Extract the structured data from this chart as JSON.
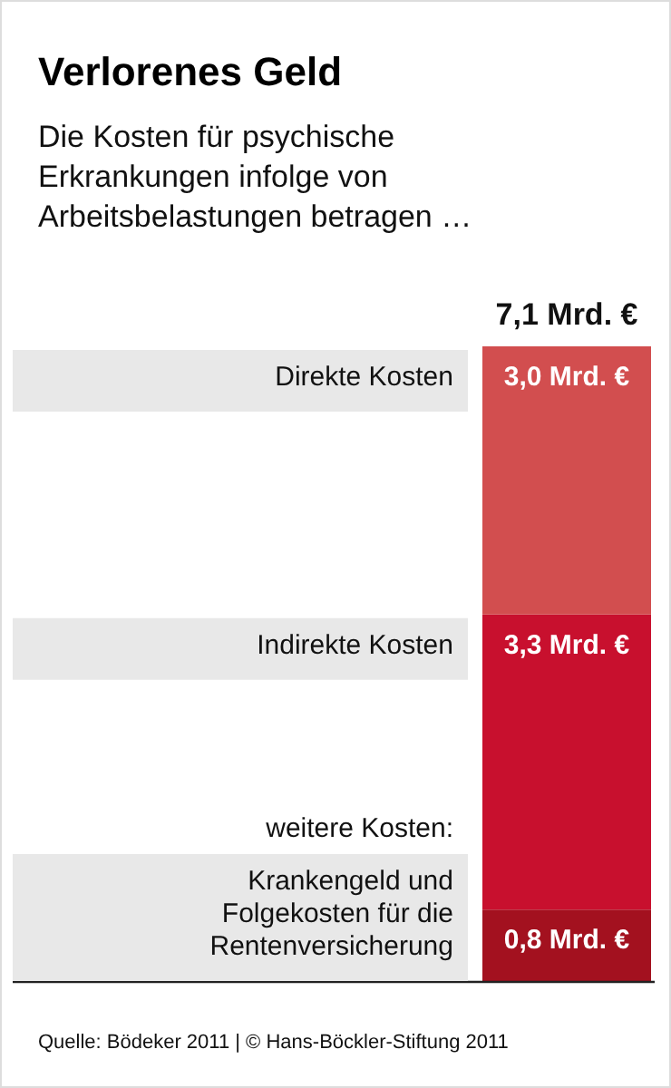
{
  "chart_data": {
    "type": "bar",
    "title": "Verlorenes Geld",
    "subtitle": "Die Kosten für psychische Erkrankungen infolge von Arbeitsbelastungen betragen …",
    "categories": [
      null
    ],
    "stacked": true,
    "series": [
      {
        "name": "Krankengeld und Folgekosten für die Rentenversicherung",
        "color": "#a3111f",
        "values": [
          0.8
        ],
        "value_labels": [
          "0,8 Mrd. €"
        ]
      },
      {
        "name": "Indirekte Kosten",
        "color": "#c8102e",
        "values": [
          3.3
        ],
        "value_labels": [
          "3,3 Mrd. €"
        ]
      },
      {
        "name": "Direkte Kosten",
        "color": "#d24e4f",
        "values": [
          3.0
        ],
        "value_labels": [
          "3,0 Mrd. €"
        ]
      }
    ],
    "totals": [
      "7,1 Mrd. €"
    ],
    "annotations": [
      "weitere Kosten:",
      "Quelle: Bödeker 2011 | © Hans-Böckler-Stiftung 2011"
    ],
    "legend": false
  }
}
